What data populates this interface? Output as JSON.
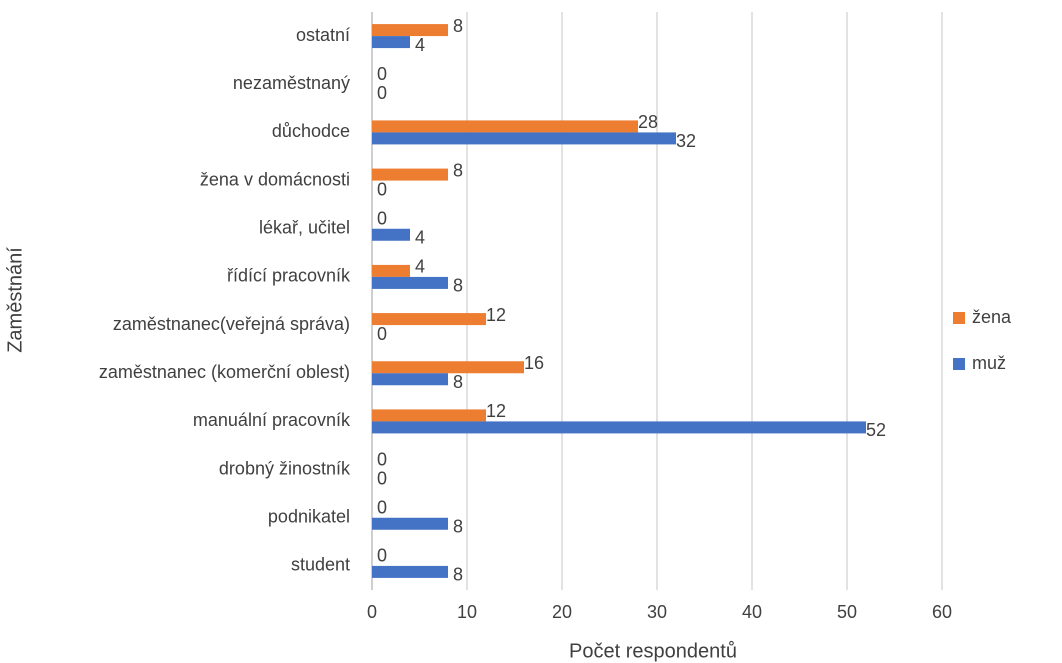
{
  "chart_data": {
    "type": "bar",
    "orientation": "horizontal",
    "categories": [
      "student",
      "podnikatel",
      "drobný žinostník",
      "manuální pracovník",
      "zaměstnanec (komerční oblest)",
      "zaměstnanec(veřejná správa)",
      "řídící pracovník",
      "lékař, učitel",
      "žena v domácnosti",
      "důchodce",
      "nezaměstnaný",
      "ostatní"
    ],
    "series": [
      {
        "name": "žena",
        "color": "#ED7D31",
        "values": [
          0,
          0,
          0,
          12,
          16,
          12,
          4,
          0,
          8,
          28,
          0,
          8
        ]
      },
      {
        "name": "muž",
        "color": "#4472C4",
        "values": [
          8,
          8,
          0,
          52,
          8,
          0,
          8,
          4,
          0,
          32,
          0,
          4
        ]
      }
    ],
    "xlim": [
      0,
      60
    ],
    "xticks": [
      0,
      10,
      20,
      30,
      40,
      50,
      60
    ],
    "xlabel": "Počet respondentů",
    "ylabel": "Zaměstnání",
    "grid": true,
    "legend": "right"
  }
}
